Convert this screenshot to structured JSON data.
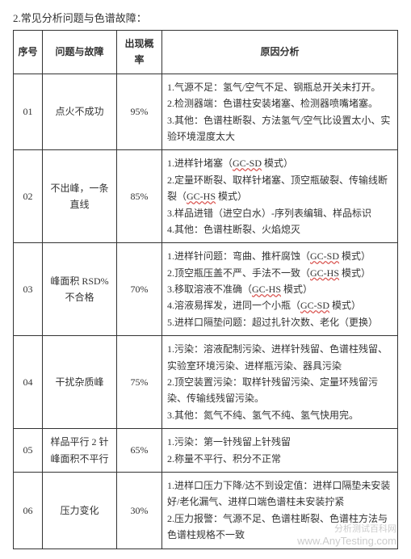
{
  "title": "2.常见分析问题与色谱故障：",
  "headers": {
    "seq": "序号",
    "problem": "问题与故障",
    "probability": "出现概率",
    "analysis": "原因分析"
  },
  "rows": [
    {
      "seq": "01",
      "problem": "点火不成功",
      "probability": "95%",
      "analysis_html": "1.气源不足：氢气/空气不足、钢瓶总开关未打开。<br>2.检测器端：色谱柱安装堵塞、检测器喷嘴堵塞。<br>3.其他：色谱柱断裂、方法氢气/空气比设置太小、实验环境湿度太大"
    },
    {
      "seq": "02",
      "problem": "不出峰，一条直线",
      "probability": "85%",
      "analysis_html": "1.进样针堵塞（<span class=\"ul-red\">GC-SD</span> 模式）<br>2.定量环断裂、取样针堵塞、顶空瓶破裂、传输线断裂（<span class=\"ul-red\">GC-HS</span> 模式）<br>3.样品进错（进空白水）-序列表编辑、样品标识<br>4.其他：色谱柱断裂、火焰熄灭"
    },
    {
      "seq": "03",
      "problem": "峰面积 RSD%不合格",
      "probability": "70%",
      "analysis_html": "1.进样针问题：弯曲、推杆腐蚀（<span class=\"ul-red\">GC-SD</span> 模式）<br>2.顶空瓶压盖不严、手法不一致（<span class=\"ul-red\">GC-HS</span> 模式）<br>3.移取溶液不准确（<span class=\"ul-red\">GC-HS</span> 模式）<br>4.溶液易挥发，进同一个小瓶（<span class=\"ul-red\">GC-SD</span> 模式）<br>5.进样口隔垫问题：超过扎针次数、老化（更换）"
    },
    {
      "seq": "04",
      "problem": "干扰杂质峰",
      "probability": "75%",
      "analysis_html": "1.污染：溶液配制污染、进样针残留、色谱柱残留、实验室环境污染、进样瓶污染、器具污染<br>2.顶空装置污染：取样针残留污染、定量环残留污染、传输线残留污染。<br>3.其他：氮气不纯、氢气不纯、氢气快用完。"
    },
    {
      "seq": "05",
      "problem": "样品平行 2 针峰面积不平行",
      "probability": "65%",
      "analysis_html": "1.污染：第一针残留上针残留<br>2.称量不平行、积分不正常"
    },
    {
      "seq": "06",
      "problem": "压力变化",
      "probability": "30%",
      "analysis_html": "1.进样口压力下降/达不到设定值：进样口隔垫未安装好/老化漏气、进样口端色谱柱未安装拧紧<br>2.压力报警：气源不足、色谱柱断裂、色谱柱方法与色谱柱规格不一致"
    }
  ],
  "watermark": {
    "cn": "分析测试百科网",
    "en": "www.AnyTesting.com"
  }
}
